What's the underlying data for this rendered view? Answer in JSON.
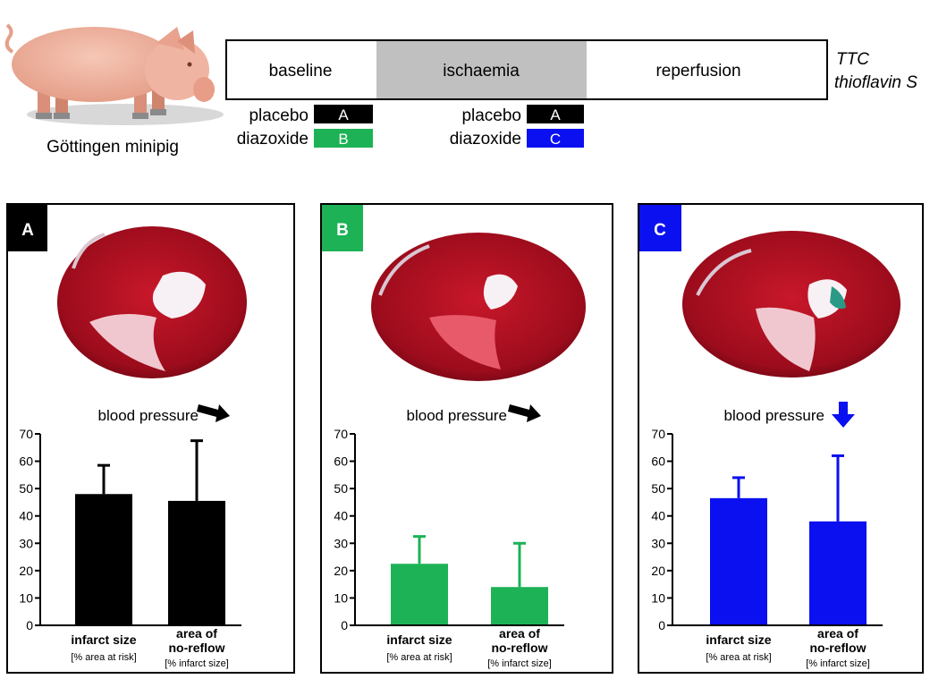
{
  "pig": {
    "caption": "Göttingen minipig"
  },
  "timeline": {
    "phases": [
      "baseline",
      "ischaemia",
      "reperfusion"
    ],
    "stains": [
      "TTC",
      "thioflavin S"
    ],
    "baseline_groups": [
      {
        "label": "placebo",
        "group": "A"
      },
      {
        "label": "diazoxide",
        "group": "B"
      }
    ],
    "ischaemia_groups": [
      {
        "label": "placebo",
        "group": "A"
      },
      {
        "label": "diazoxide",
        "group": "C"
      }
    ]
  },
  "colors": {
    "A": "#000000",
    "B": "#1db256",
    "C": "#0a10f0",
    "ischaemia": "#c0c0c0"
  },
  "bp_label": "blood pressure",
  "bp_arrows": {
    "A": "arrow-down-right",
    "B": "arrow-down-right",
    "C": "arrow-down"
  },
  "tick_labels": [
    "0",
    "10",
    "20",
    "30",
    "40",
    "50",
    "60",
    "70"
  ],
  "chart_data": [
    {
      "type": "bar",
      "panel": "A",
      "color": "#000000",
      "categories": [
        "infarct size",
        "area of no-reflow"
      ],
      "category_units": [
        "[% area at risk]",
        "[% infarct size]"
      ],
      "values": [
        48,
        45.5
      ],
      "errors": [
        10.5,
        22
      ],
      "ylim": [
        0,
        70
      ]
    },
    {
      "type": "bar",
      "panel": "B",
      "color": "#1db256",
      "categories": [
        "infarct size",
        "area of no-reflow"
      ],
      "category_units": [
        "[% area at risk]",
        "[% infarct size]"
      ],
      "values": [
        22.5,
        14
      ],
      "errors": [
        10,
        16
      ],
      "ylim": [
        0,
        70
      ]
    },
    {
      "type": "bar",
      "panel": "C",
      "color": "#0a10f0",
      "categories": [
        "infarct size",
        "area of no-reflow"
      ],
      "category_units": [
        "[% area at risk]",
        "[% infarct size]"
      ],
      "values": [
        46.5,
        38
      ],
      "errors": [
        7.5,
        24
      ],
      "ylim": [
        0,
        70
      ]
    }
  ]
}
